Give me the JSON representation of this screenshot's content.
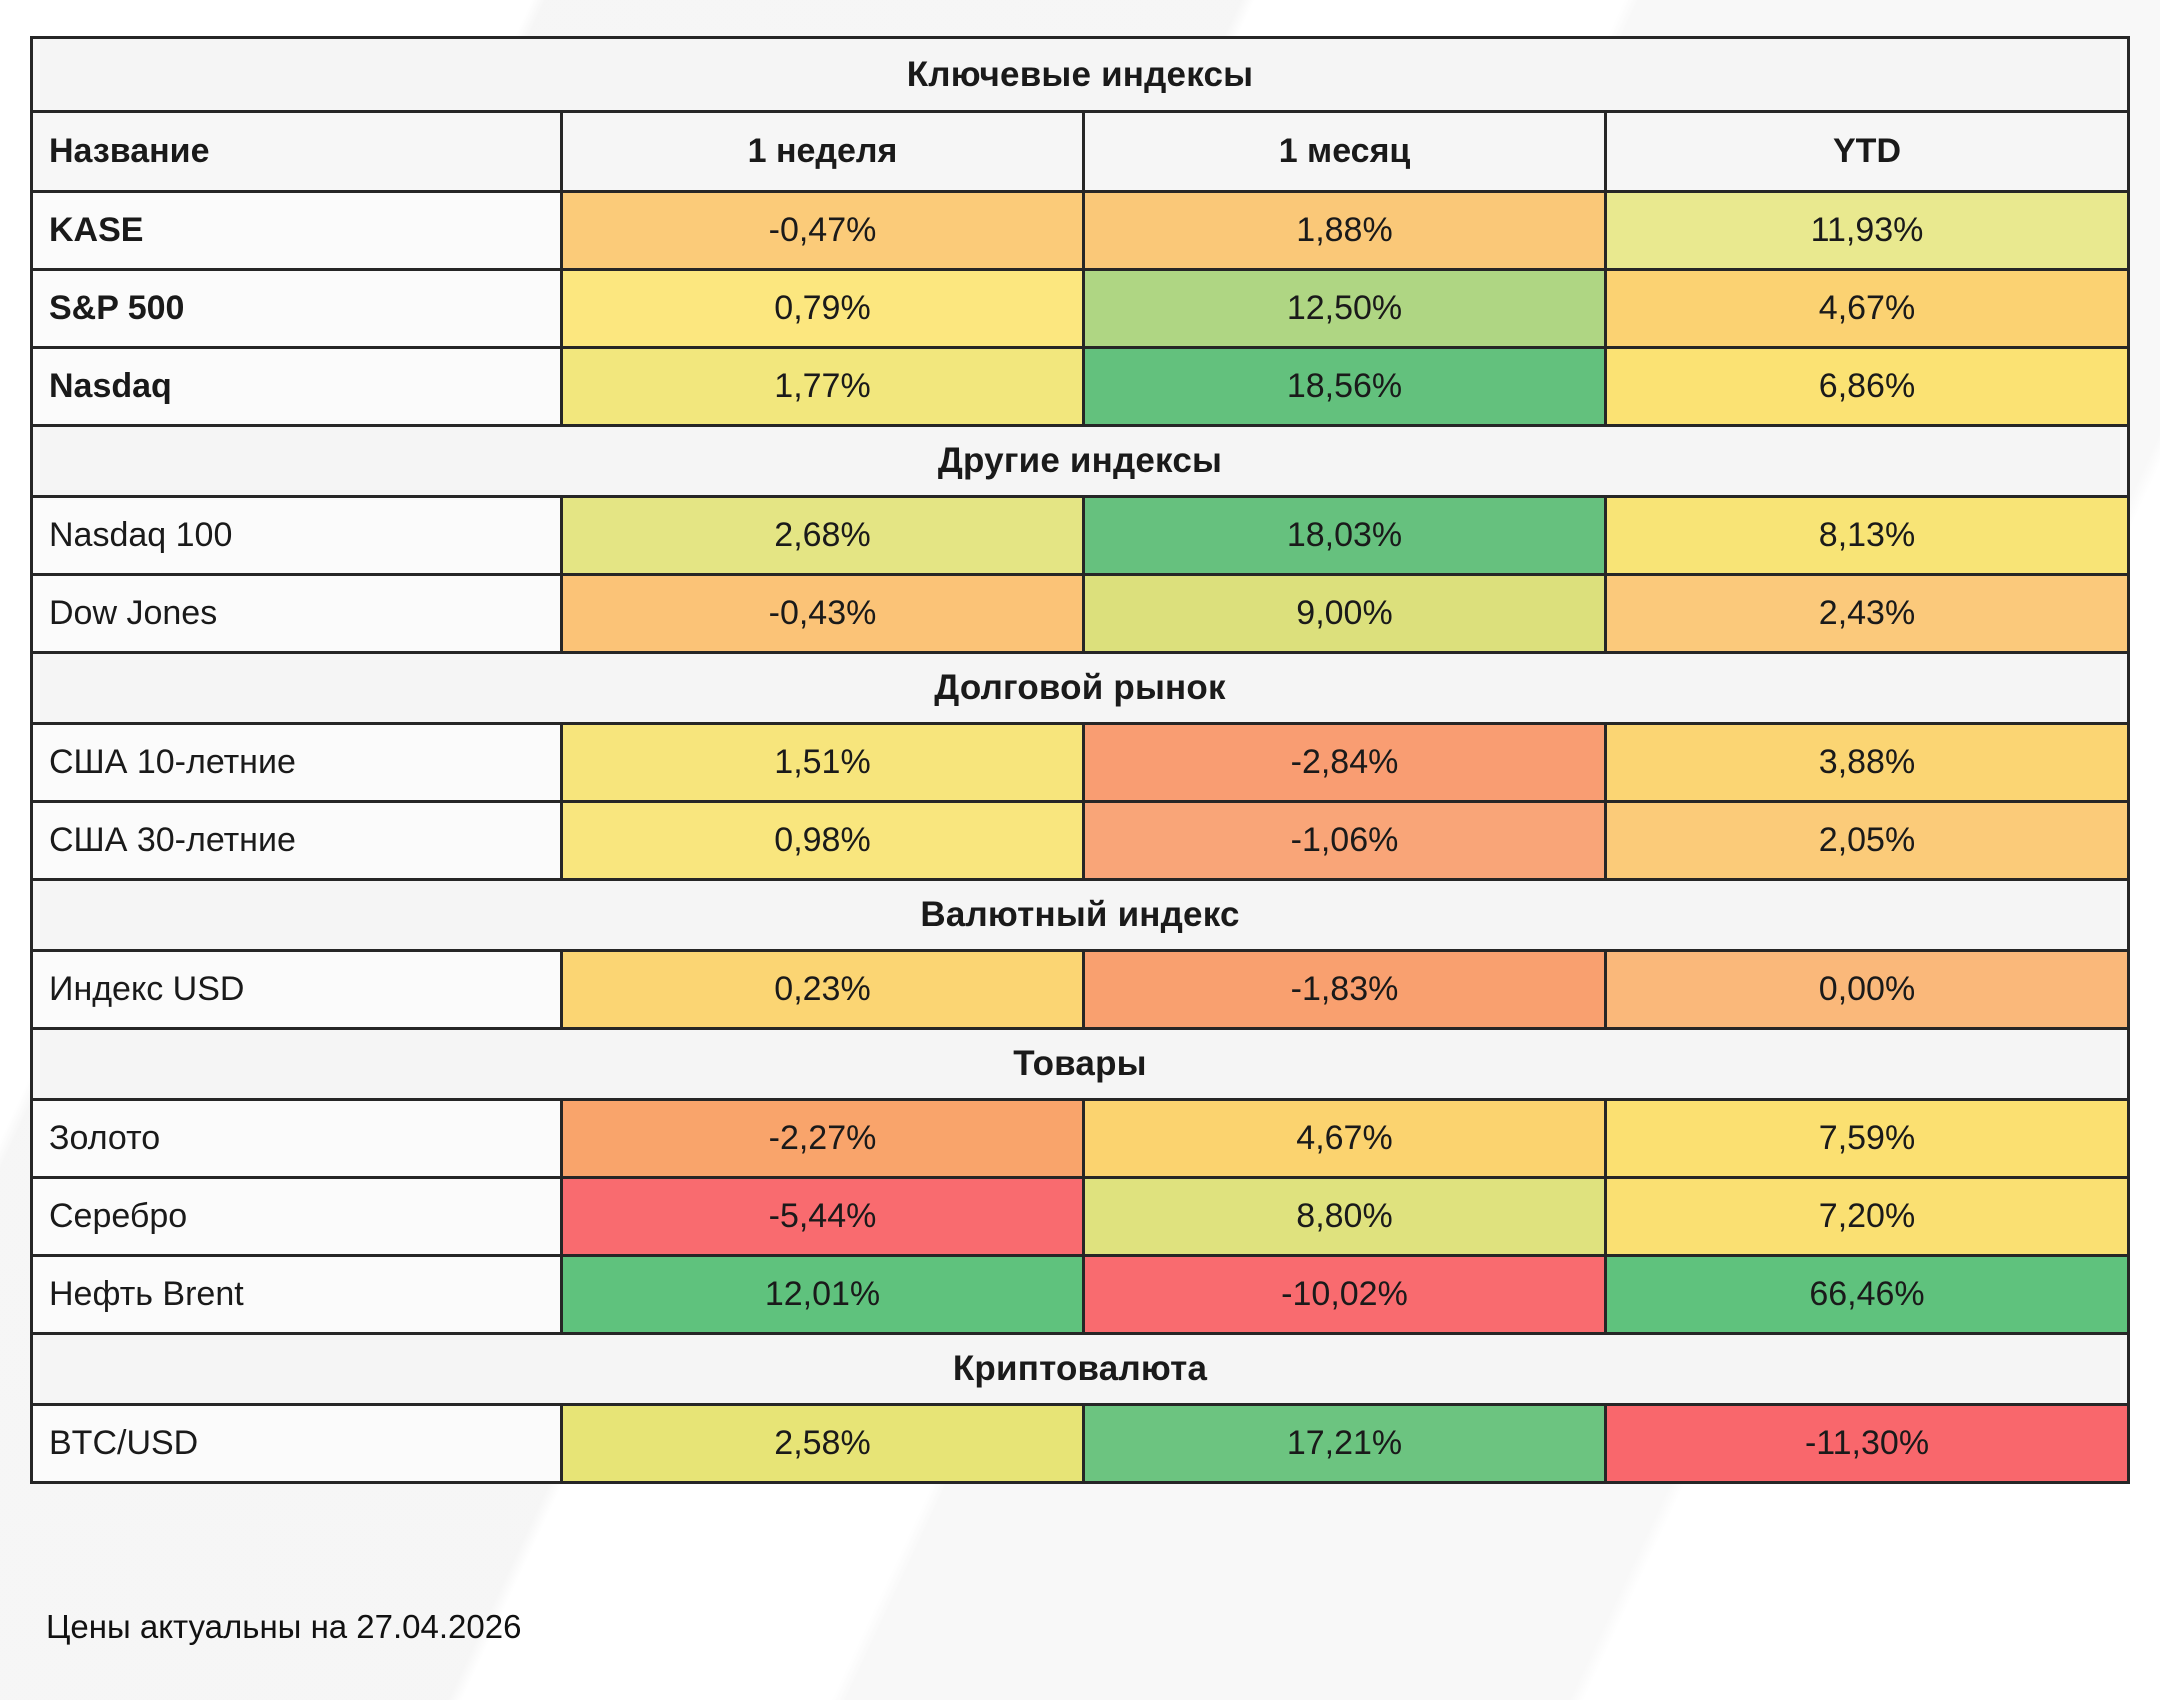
{
  "page": {
    "footer_note": "Цены актуальны на 27.04.2026"
  },
  "chart_data": {
    "type": "table",
    "title": "Ключевые индексы",
    "columns": [
      "Название",
      "1 неделя",
      "1 месяц",
      "YTD"
    ],
    "value_format": "percent, comma decimal separator",
    "legend": "cell background encodes performance: green = strong gain, yellow = mild gain, orange = mild loss, red = strong loss",
    "sections": [
      {
        "title": "Ключевые индексы",
        "header_row": true,
        "rows": [
          {
            "name": "KASE",
            "bold": true,
            "values": [
              "-0,47%",
              "1,88%",
              "11,93%"
            ],
            "numeric": [
              -0.47,
              1.88,
              11.93
            ],
            "colors": [
              "#FBCB79",
              "#FAC878",
              "#E9E98F"
            ]
          },
          {
            "name": "S&P 500",
            "bold": true,
            "values": [
              "0,79%",
              "12,50%",
              "4,67%"
            ],
            "numeric": [
              0.79,
              12.5,
              4.67
            ],
            "colors": [
              "#FCE77F",
              "#AFD683",
              "#FBD272"
            ]
          },
          {
            "name": "Nasdaq",
            "bold": true,
            "values": [
              "1,77%",
              "18,56%",
              "6,86%"
            ],
            "numeric": [
              1.77,
              18.56,
              6.86
            ],
            "colors": [
              "#F2E77D",
              "#63C17D",
              "#FBE273"
            ]
          }
        ]
      },
      {
        "title": "Другие индексы",
        "header_row": false,
        "rows": [
          {
            "name": "Nasdaq 100",
            "bold": false,
            "values": [
              "2,68%",
              "18,03%",
              "8,13%"
            ],
            "numeric": [
              2.68,
              18.03,
              8.13
            ],
            "colors": [
              "#E4E584",
              "#66C17E",
              "#F8E476"
            ]
          },
          {
            "name": "Dow Jones",
            "bold": false,
            "values": [
              "-0,43%",
              "9,00%",
              "2,43%"
            ],
            "numeric": [
              -0.43,
              9.0,
              2.43
            ],
            "colors": [
              "#FBC377",
              "#DCE07C",
              "#FBC97B"
            ]
          }
        ]
      },
      {
        "title": "Долговой рынок",
        "header_row": false,
        "rows": [
          {
            "name": "США 10-летние",
            "bold": false,
            "values": [
              "1,51%",
              "-2,84%",
              "3,88%"
            ],
            "numeric": [
              1.51,
              -2.84,
              3.88
            ],
            "colors": [
              "#F7E57C",
              "#F99D72",
              "#FBD573"
            ]
          },
          {
            "name": "США 30-летние",
            "bold": false,
            "values": [
              "0,98%",
              "-1,06%",
              "2,05%"
            ],
            "numeric": [
              0.98,
              -1.06,
              2.05
            ],
            "colors": [
              "#F9E67E",
              "#F9A578",
              "#FBCB79"
            ]
          }
        ]
      },
      {
        "title": "Валютный индекс",
        "header_row": false,
        "rows": [
          {
            "name": "Индекс USD",
            "bold": false,
            "values": [
              "0,23%",
              "-1,83%",
              "0,00%"
            ],
            "numeric": [
              0.23,
              -1.83,
              0.0
            ],
            "colors": [
              "#FBD573",
              "#F9A06F",
              "#FAB87A"
            ]
          }
        ]
      },
      {
        "title": "Товары",
        "header_row": false,
        "rows": [
          {
            "name": "Золото",
            "bold": false,
            "values": [
              "-2,27%",
              "4,67%",
              "7,59%"
            ],
            "numeric": [
              -2.27,
              4.67,
              7.59
            ],
            "colors": [
              "#F9A46B",
              "#FBD36F",
              "#FBE071"
            ]
          },
          {
            "name": "Серебро",
            "bold": false,
            "values": [
              "-5,44%",
              "8,80%",
              "7,20%"
            ],
            "numeric": [
              -5.44,
              8.8,
              7.2
            ],
            "colors": [
              "#F96B6F",
              "#DFE27E",
              "#FAE072"
            ]
          },
          {
            "name": "Нефть Brent",
            "bold": false,
            "values": [
              "12,01%",
              "-10,02%",
              "66,46%"
            ],
            "numeric": [
              12.01,
              -10.02,
              66.46
            ],
            "colors": [
              "#5FC27D",
              "#F96B6F",
              "#5FC27D"
            ]
          }
        ]
      },
      {
        "title": "Криптовалюта",
        "header_row": false,
        "rows": [
          {
            "name": "BTC/USD",
            "bold": false,
            "values": [
              "2,58%",
              "17,21%",
              "-11,30%"
            ],
            "numeric": [
              2.58,
              17.21,
              -11.3
            ],
            "colors": [
              "#E7E476",
              "#6CC480",
              "#F9676C"
            ]
          }
        ]
      }
    ]
  }
}
